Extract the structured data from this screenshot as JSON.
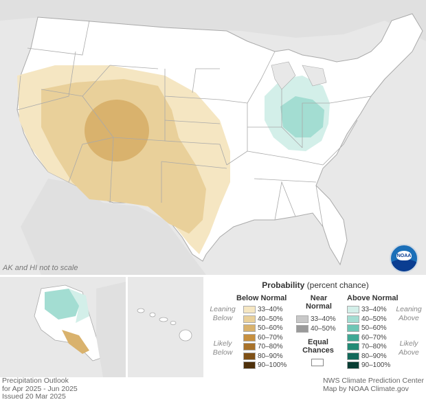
{
  "map": {
    "title_lines": [
      "Precipitation Outlook",
      "for Apr 2025 - Jun 2025",
      "Issued 20 Mar 2025"
    ],
    "credit_lines": [
      "NWS Climate Prediction Center",
      "Map by NOAA Climate.gov"
    ],
    "scale_note": "AK and HI not to scale",
    "logo_text": "NOAA",
    "colors": {
      "ocean": "#e8e8e8",
      "land": "#ffffff",
      "border": "#a9a9a9",
      "below_33_40": "#f5e6c2",
      "below_40_50": "#e9d09a",
      "below_50_60": "#d9b26d",
      "below_60_70": "#c7903f",
      "below_70_80": "#a8722a",
      "below_80_90": "#7e5016",
      "below_90_100": "#4e300a",
      "above_33_40": "#d3efe9",
      "above_40_50": "#a3ddd2",
      "above_50_60": "#6ec6b5",
      "above_60_70": "#3fa894",
      "above_70_80": "#228a75",
      "above_80_90": "#12695a",
      "above_90_100": "#083d33",
      "near_33_40": "#c8c8c8",
      "near_40_50": "#9a9a9a"
    }
  },
  "legend": {
    "title_bold": "Probability",
    "title_rest": "(percent chance)",
    "below_header": "Below Normal",
    "near_header_1": "Near",
    "near_header_2": "Normal",
    "above_header": "Above Normal",
    "leaning_below": [
      "Leaning",
      "Below"
    ],
    "likely_below": [
      "Likely",
      "Below"
    ],
    "leaning_above": [
      "Leaning",
      "Above"
    ],
    "likely_above": [
      "Likely",
      "Above"
    ],
    "equal_chances": [
      "Equal",
      "Chances"
    ],
    "below_rows": [
      "33–40%",
      "40–50%",
      "50–60%",
      "60–70%",
      "70–80%",
      "80–90%",
      "90–100%"
    ],
    "near_rows": [
      "33–40%",
      "40–50%"
    ],
    "above_rows": [
      "33–40%",
      "40–50%",
      "50–60%",
      "60–70%",
      "70–80%",
      "80–90%",
      "90–100%"
    ]
  }
}
